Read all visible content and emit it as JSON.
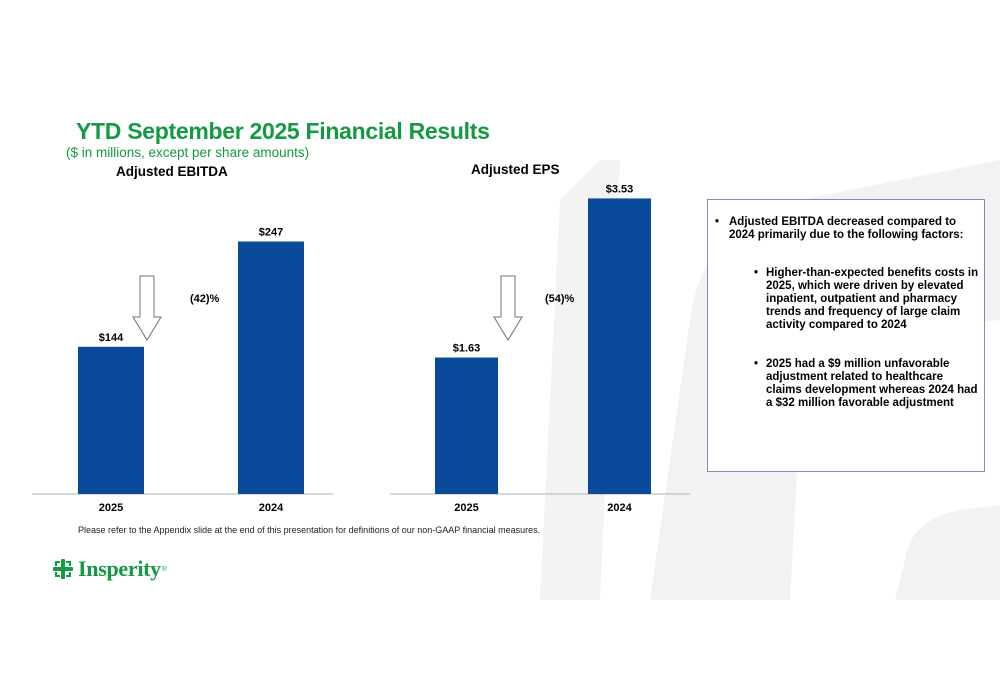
{
  "header": {
    "title": "YTD September 2025 Financial Results",
    "subtitle": "($ in millions, except per share amounts)"
  },
  "colors": {
    "brand_green": "#139a43",
    "bar_blue": "#0a4a9a",
    "box_border": "#7f8fb3"
  },
  "chart_data": [
    {
      "type": "bar",
      "title": "Adjusted EBITDA",
      "categories": [
        "2025",
        "2024"
      ],
      "values": [
        144,
        247
      ],
      "value_labels": [
        "$144",
        "$247"
      ],
      "change_label": "(42)%",
      "ylim": [
        0,
        270
      ]
    },
    {
      "type": "bar",
      "title": "Adjusted EPS",
      "categories": [
        "2025",
        "2024"
      ],
      "values": [
        1.63,
        3.53
      ],
      "value_labels": [
        "$1.63",
        "$3.53"
      ],
      "change_label": "(54)%",
      "ylim": [
        0,
        3.75
      ]
    }
  ],
  "commentary": {
    "main_bullet": "Adjusted EBITDA decreased compared to 2024 primarily due to the following factors:",
    "sub_bullets": [
      "Higher-than-expected benefits costs in 2025, which were driven by elevated inpatient, outpatient and pharmacy trends and frequency of large claim activity compared to 2024",
      "2025 had a $9 million unfavorable adjustment related to healthcare claims development whereas 2024 had a $32 million favorable adjustment"
    ]
  },
  "footnote": "Please refer to the Appendix slide at the end of this presentation for definitions of our non-GAAP financial measures.",
  "logo": {
    "text": "Insperity",
    "reg_mark": "®",
    "icon": "insperity-logo-icon"
  }
}
